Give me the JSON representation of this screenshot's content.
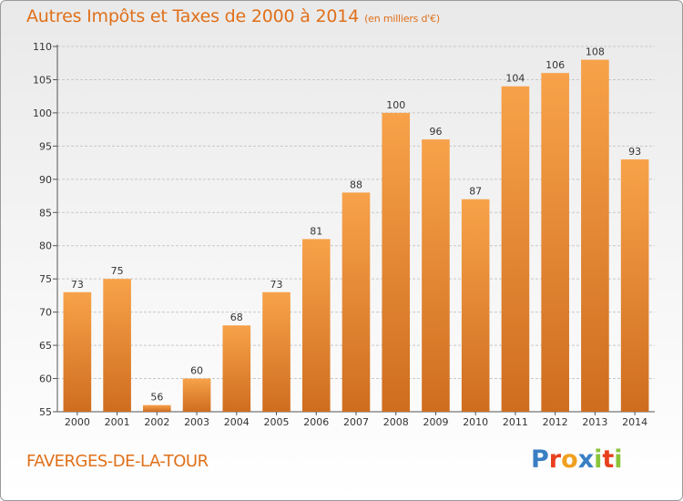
{
  "header": {
    "title": "Autres Impôts et Taxes de 2000 à 2014",
    "unit": "(en milliers d'€)"
  },
  "footer": {
    "location": "FAVERGES-DE-LA-TOUR",
    "brand_letters": [
      "P",
      "r",
      "o",
      "x",
      "i",
      "t",
      "i"
    ],
    "brand_colors": [
      "#3a7fc4",
      "#e8401c",
      "#f0a020",
      "#3a7fc4",
      "#8cc43a",
      "#e8401c",
      "#8cc43a"
    ]
  },
  "colors": {
    "bar_light": "#f7a24a",
    "bar_dark": "#cf6d1f",
    "axis_text": "#333333",
    "grid": "#c8c8c8",
    "accent": "#e0701a"
  },
  "chart_data": {
    "type": "bar",
    "title": "Autres Impôts et Taxes de 2000 à 2014",
    "ylabel": "",
    "xlabel": "",
    "categories": [
      "2000",
      "2001",
      "2002",
      "2003",
      "2004",
      "2005",
      "2006",
      "2007",
      "2008",
      "2009",
      "2010",
      "2011",
      "2012",
      "2013",
      "2014"
    ],
    "values": [
      73,
      75,
      56,
      60,
      68,
      73,
      81,
      88,
      100,
      96,
      87,
      104,
      106,
      108,
      93
    ],
    "ylim": [
      55,
      110
    ],
    "yticks": [
      55,
      60,
      65,
      70,
      75,
      80,
      85,
      90,
      95,
      100,
      105,
      110
    ],
    "grid": true,
    "data_labels": true
  }
}
